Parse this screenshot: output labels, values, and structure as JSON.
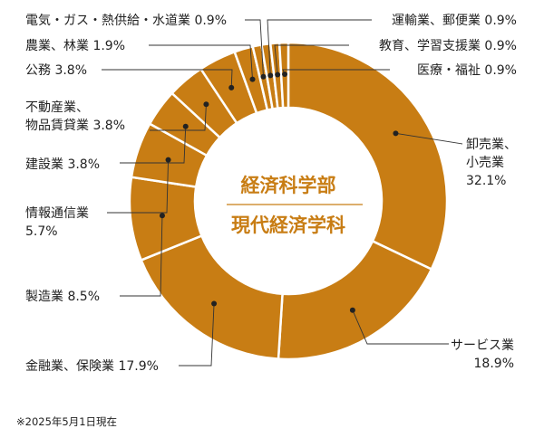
{
  "chart_data": {
    "type": "pie",
    "style": "donut",
    "center_title": "経済科学部",
    "center_subtitle": "現代経済学科",
    "footnote": "※2025年5月1日現在",
    "colors": {
      "slice": "#c87d14",
      "separator": "#ffffff",
      "center_text": "#c87d14",
      "leader": "#333333"
    },
    "slices": [
      {
        "label": "卸売業、小売業",
        "lines": [
          "卸売業、",
          "小売業"
        ],
        "value_text": "32.1%",
        "value": 32.1
      },
      {
        "label": "サービス業",
        "lines": [
          "サービス業"
        ],
        "value_text": "18.9%",
        "value": 18.9
      },
      {
        "label": "金融業、保険業",
        "lines": [
          "金融業、保険業"
        ],
        "value_text": "17.9%",
        "value": 17.9
      },
      {
        "label": "製造業",
        "lines": [
          "製造業"
        ],
        "value_text": "8.5%",
        "value": 8.5
      },
      {
        "label": "情報通信業",
        "lines": [
          "情報通信業"
        ],
        "value_text": "5.7%",
        "value": 5.7
      },
      {
        "label": "建設業",
        "lines": [
          "建設業"
        ],
        "value_text": "3.8%",
        "value": 3.8
      },
      {
        "label": "不動産業、物品賃貸業",
        "lines": [
          "不動産業、",
          "物品賃貸業"
        ],
        "value_text": "3.8%",
        "value": 3.8
      },
      {
        "label": "公務",
        "lines": [
          "公務"
        ],
        "value_text": "3.8%",
        "value": 3.8
      },
      {
        "label": "農業、林業",
        "lines": [
          "農業、林業"
        ],
        "value_text": "1.9%",
        "value": 1.9
      },
      {
        "label": "電気・ガス・熱供給・水道業",
        "lines": [
          "電気・ガス・熱供給・水道業"
        ],
        "value_text": "0.9%",
        "value": 0.9
      },
      {
        "label": "運輸業、郵便業",
        "lines": [
          "運輸業、郵便業"
        ],
        "value_text": "0.9%",
        "value": 0.9
      },
      {
        "label": "教育、学習支援業",
        "lines": [
          "教育、学習支援業"
        ],
        "value_text": "0.9%",
        "value": 0.9
      },
      {
        "label": "医療・福祉",
        "lines": [
          "医療・福祉"
        ],
        "value_text": "0.9%",
        "value": 0.9
      }
    ]
  }
}
